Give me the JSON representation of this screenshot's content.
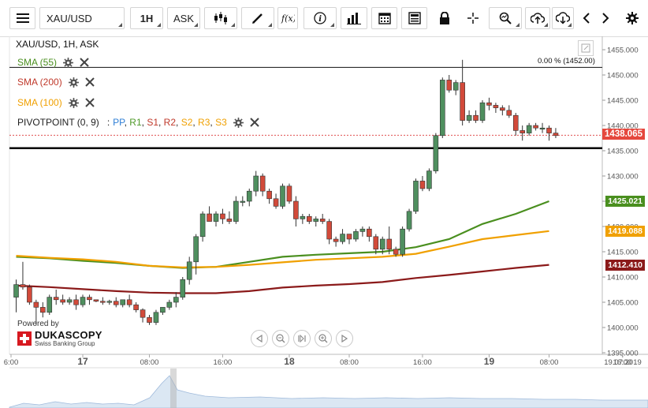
{
  "toolbar": {
    "instrument": "XAU/USD",
    "timeframe": "1H",
    "side": "ASK",
    "colors": {
      "border": "#d4d4d4"
    },
    "icons": [
      "menu-icon",
      "candles-icon",
      "draw-icon",
      "function-icon",
      "info-icon",
      "bars-icon",
      "calendar-icon",
      "news-icon",
      "lock-icon",
      "crosshair-icon",
      "zoom-icon",
      "upload-icon",
      "download-icon",
      "chevron-left-icon",
      "chevron-right-icon",
      "gear-icon"
    ]
  },
  "chart_header": "XAU/USD, 1H, ASK",
  "legend": {
    "sma55": "SMA (55)",
    "sma200": "SMA (200)",
    "sma100": "SMA (100)",
    "pivot_prefix": "PIVOTPOINT (0, 9)",
    "pivot_sep": ":",
    "pivot_items": [
      {
        "label": "PP",
        "color": "#2f7fd6"
      },
      {
        "label": "R1",
        "color": "#4f9a2a"
      },
      {
        "label": "S1",
        "color": "#c0392b"
      },
      {
        "label": "R2",
        "color": "#c0392b"
      },
      {
        "label": "S2",
        "color": "#f0a000"
      },
      {
        "label": "R3",
        "color": "#f0a000"
      },
      {
        "label": "S3",
        "color": "#f0a000"
      }
    ]
  },
  "fib_label": "0.00 % (1452.00)",
  "price_labels": {
    "current": "1438.065",
    "sma55": "1425.021",
    "sma100": "1419.088",
    "sma200": "1412.410"
  },
  "logo": {
    "powered_by": "Powered by",
    "brand": "DUKASCOPY",
    "sub": "Swiss Banking Group"
  },
  "chart_data": {
    "type": "candlestick",
    "title": "XAU/USD, 1H, ASK",
    "ylim": [
      1395,
      1457
    ],
    "y_ticks": [
      1395,
      1400,
      1405,
      1410,
      1415,
      1420,
      1425,
      1430,
      1435,
      1440,
      1445,
      1450,
      1455
    ],
    "y_tick_labels": [
      "1395.000",
      "1400.000",
      "1405.000",
      "1410.000",
      "1415.000",
      "1420.000",
      "1425.000",
      "1430.000",
      "1435.000",
      "1440.000",
      "1445.000",
      "1450.000",
      "1455.000"
    ],
    "x_tick_labels": [
      "6:00",
      "17",
      "08:00",
      "16:00",
      "18",
      "08:00",
      "16:00",
      "19",
      "08:00",
      "16:00",
      "19.07.2019"
    ],
    "x_tick_index": [
      0,
      10,
      20,
      31,
      41,
      50,
      61,
      71,
      80,
      91,
      100
    ],
    "x_tick_bold": [
      "17",
      "18",
      "19"
    ],
    "candles": [
      [
        1406.0,
        1409.5,
        1403.0,
        1408.5
      ],
      [
        1408.5,
        1413.0,
        1407.5,
        1408.0
      ],
      [
        1408.0,
        1408.5,
        1404.5,
        1405.0
      ],
      [
        1405.0,
        1405.5,
        1400.5,
        1404.0
      ],
      [
        1404.0,
        1405.0,
        1402.0,
        1403.0
      ],
      [
        1403.0,
        1406.5,
        1402.5,
        1406.0
      ],
      [
        1406.0,
        1407.5,
        1404.5,
        1405.5
      ],
      [
        1405.5,
        1406.5,
        1404.5,
        1405.0
      ],
      [
        1405.0,
        1406.0,
        1404.5,
        1405.5
      ],
      [
        1405.5,
        1406.5,
        1403.5,
        1404.5
      ],
      [
        1404.5,
        1406.5,
        1404.0,
        1406.0
      ],
      [
        1406.0,
        1406.5,
        1404.5,
        1405.5
      ],
      [
        1405.5,
        1405.5,
        1405.0,
        1405.2
      ],
      [
        1405.2,
        1406.0,
        1404.5,
        1405.0
      ],
      [
        1405.0,
        1405.5,
        1404.5,
        1405.2
      ],
      [
        1405.2,
        1406.0,
        1404.0,
        1404.5
      ],
      [
        1404.5,
        1405.5,
        1404.0,
        1405.5
      ],
      [
        1405.5,
        1406.5,
        1404.0,
        1404.5
      ],
      [
        1404.5,
        1405.0,
        1403.0,
        1403.5
      ],
      [
        1403.5,
        1403.8,
        1401.0,
        1402.0
      ],
      [
        1402.0,
        1402.5,
        1400.5,
        1401.0
      ],
      [
        1401.0,
        1403.5,
        1400.5,
        1403.0
      ],
      [
        1403.0,
        1404.0,
        1402.5,
        1404.0
      ],
      [
        1404.0,
        1405.5,
        1403.5,
        1405.0
      ],
      [
        1405.0,
        1407.0,
        1404.0,
        1406.0
      ],
      [
        1406.0,
        1410.0,
        1405.5,
        1409.5
      ],
      [
        1409.5,
        1414.0,
        1408.5,
        1413.0
      ],
      [
        1413.0,
        1418.5,
        1410.5,
        1418.0
      ],
      [
        1418.0,
        1423.0,
        1417.0,
        1422.5
      ],
      [
        1422.5,
        1424.0,
        1421.0,
        1421.0
      ],
      [
        1421.0,
        1423.0,
        1420.0,
        1422.5
      ],
      [
        1422.5,
        1423.5,
        1420.5,
        1421.5
      ],
      [
        1421.5,
        1423.0,
        1420.5,
        1421.0
      ],
      [
        1421.0,
        1426.0,
        1420.5,
        1425.0
      ],
      [
        1425.0,
        1426.0,
        1424.0,
        1425.0
      ],
      [
        1425.0,
        1427.5,
        1424.0,
        1427.0
      ],
      [
        1427.0,
        1431.0,
        1426.0,
        1430.0
      ],
      [
        1430.0,
        1430.5,
        1426.0,
        1427.0
      ],
      [
        1427.0,
        1427.5,
        1424.5,
        1425.5
      ],
      [
        1425.5,
        1426.5,
        1423.5,
        1424.0
      ],
      [
        1424.0,
        1428.5,
        1423.5,
        1428.0
      ],
      [
        1428.0,
        1428.5,
        1424.5,
        1425.0
      ],
      [
        1425.0,
        1426.0,
        1420.0,
        1421.5
      ],
      [
        1421.5,
        1422.5,
        1420.5,
        1422.0
      ],
      [
        1422.0,
        1422.5,
        1420.5,
        1421.0
      ],
      [
        1421.0,
        1422.0,
        1420.0,
        1421.5
      ],
      [
        1421.5,
        1422.5,
        1420.5,
        1421.0
      ],
      [
        1421.0,
        1421.5,
        1416.5,
        1417.5
      ],
      [
        1417.5,
        1418.0,
        1416.0,
        1417.0
      ],
      [
        1417.0,
        1419.5,
        1416.5,
        1418.5
      ],
      [
        1418.5,
        1418.5,
        1416.5,
        1417.5
      ],
      [
        1417.5,
        1419.5,
        1417.0,
        1419.0
      ],
      [
        1419.0,
        1420.0,
        1418.0,
        1419.5
      ],
      [
        1419.5,
        1420.0,
        1417.0,
        1418.0
      ],
      [
        1418.0,
        1418.5,
        1414.5,
        1415.5
      ],
      [
        1415.5,
        1418.0,
        1414.5,
        1417.5
      ],
      [
        1417.5,
        1420.0,
        1414.5,
        1415.5
      ],
      [
        1415.5,
        1416.0,
        1414.0,
        1414.5
      ],
      [
        1414.5,
        1420.0,
        1414.0,
        1419.5
      ],
      [
        1419.5,
        1423.5,
        1419.0,
        1423.0
      ],
      [
        1423.0,
        1429.5,
        1422.5,
        1429.0
      ],
      [
        1429.0,
        1430.0,
        1427.0,
        1427.5
      ],
      [
        1427.5,
        1431.5,
        1427.0,
        1431.0
      ],
      [
        1431.0,
        1438.5,
        1430.5,
        1438.0
      ],
      [
        1438.0,
        1449.5,
        1437.5,
        1449.0
      ],
      [
        1449.0,
        1450.0,
        1446.5,
        1447.0
      ],
      [
        1447.0,
        1449.0,
        1446.0,
        1448.5
      ],
      [
        1448.5,
        1453.0,
        1440.0,
        1441.0
      ],
      [
        1441.0,
        1443.0,
        1440.5,
        1442.0
      ],
      [
        1442.0,
        1443.0,
        1440.5,
        1441.0
      ],
      [
        1441.0,
        1445.0,
        1440.5,
        1444.5
      ],
      [
        1444.5,
        1445.5,
        1443.0,
        1444.0
      ],
      [
        1444.0,
        1444.5,
        1442.5,
        1443.5
      ],
      [
        1443.5,
        1444.0,
        1442.0,
        1443.0
      ],
      [
        1443.0,
        1444.0,
        1441.5,
        1442.0
      ],
      [
        1442.0,
        1442.5,
        1438.0,
        1439.0
      ],
      [
        1439.0,
        1440.0,
        1437.0,
        1438.5
      ],
      [
        1438.5,
        1440.5,
        1438.0,
        1440.0
      ],
      [
        1440.0,
        1440.5,
        1439.0,
        1439.5
      ],
      [
        1439.5,
        1440.5,
        1438.5,
        1439.5
      ],
      [
        1439.5,
        1440.0,
        1437.0,
        1438.5
      ],
      [
        1438.5,
        1439.5,
        1437.5,
        1438.0
      ]
    ],
    "series": [
      {
        "name": "SMA (55)",
        "color": "#4a8f1f",
        "values": [
          [
            0,
            1414.0
          ],
          [
            5,
            1413.7
          ],
          [
            10,
            1413.2
          ],
          [
            15,
            1412.8
          ],
          [
            20,
            1412.2
          ],
          [
            25,
            1411.8
          ],
          [
            30,
            1412.0
          ],
          [
            35,
            1413.0
          ],
          [
            40,
            1414.0
          ],
          [
            45,
            1414.4
          ],
          [
            50,
            1414.7
          ],
          [
            55,
            1415.0
          ],
          [
            60,
            1415.9
          ],
          [
            65,
            1417.5
          ],
          [
            70,
            1420.5
          ],
          [
            75,
            1422.5
          ],
          [
            80,
            1425.0
          ]
        ]
      },
      {
        "name": "SMA (100)",
        "color": "#f0a000",
        "values": [
          [
            0,
            1414.2
          ],
          [
            5,
            1413.8
          ],
          [
            10,
            1413.5
          ],
          [
            15,
            1413.0
          ],
          [
            20,
            1412.2
          ],
          [
            25,
            1411.9
          ],
          [
            30,
            1412.0
          ],
          [
            35,
            1412.4
          ],
          [
            40,
            1412.9
          ],
          [
            45,
            1413.4
          ],
          [
            50,
            1413.7
          ],
          [
            55,
            1414.0
          ],
          [
            60,
            1414.6
          ],
          [
            65,
            1416.0
          ],
          [
            70,
            1417.5
          ],
          [
            75,
            1418.3
          ],
          [
            80,
            1419.1
          ]
        ]
      },
      {
        "name": "SMA (200)",
        "color": "#8b1a1a",
        "values": [
          [
            0,
            1408.3
          ],
          [
            5,
            1408.0
          ],
          [
            10,
            1407.6
          ],
          [
            15,
            1407.2
          ],
          [
            20,
            1406.9
          ],
          [
            25,
            1406.8
          ],
          [
            30,
            1406.8
          ],
          [
            35,
            1407.2
          ],
          [
            40,
            1407.9
          ],
          [
            45,
            1408.3
          ],
          [
            50,
            1408.6
          ],
          [
            55,
            1409.0
          ],
          [
            60,
            1409.8
          ],
          [
            65,
            1410.4
          ],
          [
            70,
            1411.1
          ],
          [
            75,
            1411.8
          ],
          [
            80,
            1412.4
          ]
        ]
      }
    ],
    "hlines": [
      {
        "value": 1451.5,
        "color": "#111111",
        "width": 1
      },
      {
        "value": 1435.5,
        "color": "#000000",
        "width": 2.5
      },
      {
        "value": 1438.065,
        "color": "#e05050",
        "width": 1,
        "dash": true
      }
    ],
    "colors": {
      "up": "#4f8f5f",
      "down": "#d24a3a",
      "current_label": "#e5473d",
      "sma55_label": "#4a8f1f",
      "sma100_label": "#f0a000",
      "sma200_label": "#8b1a1a"
    }
  }
}
